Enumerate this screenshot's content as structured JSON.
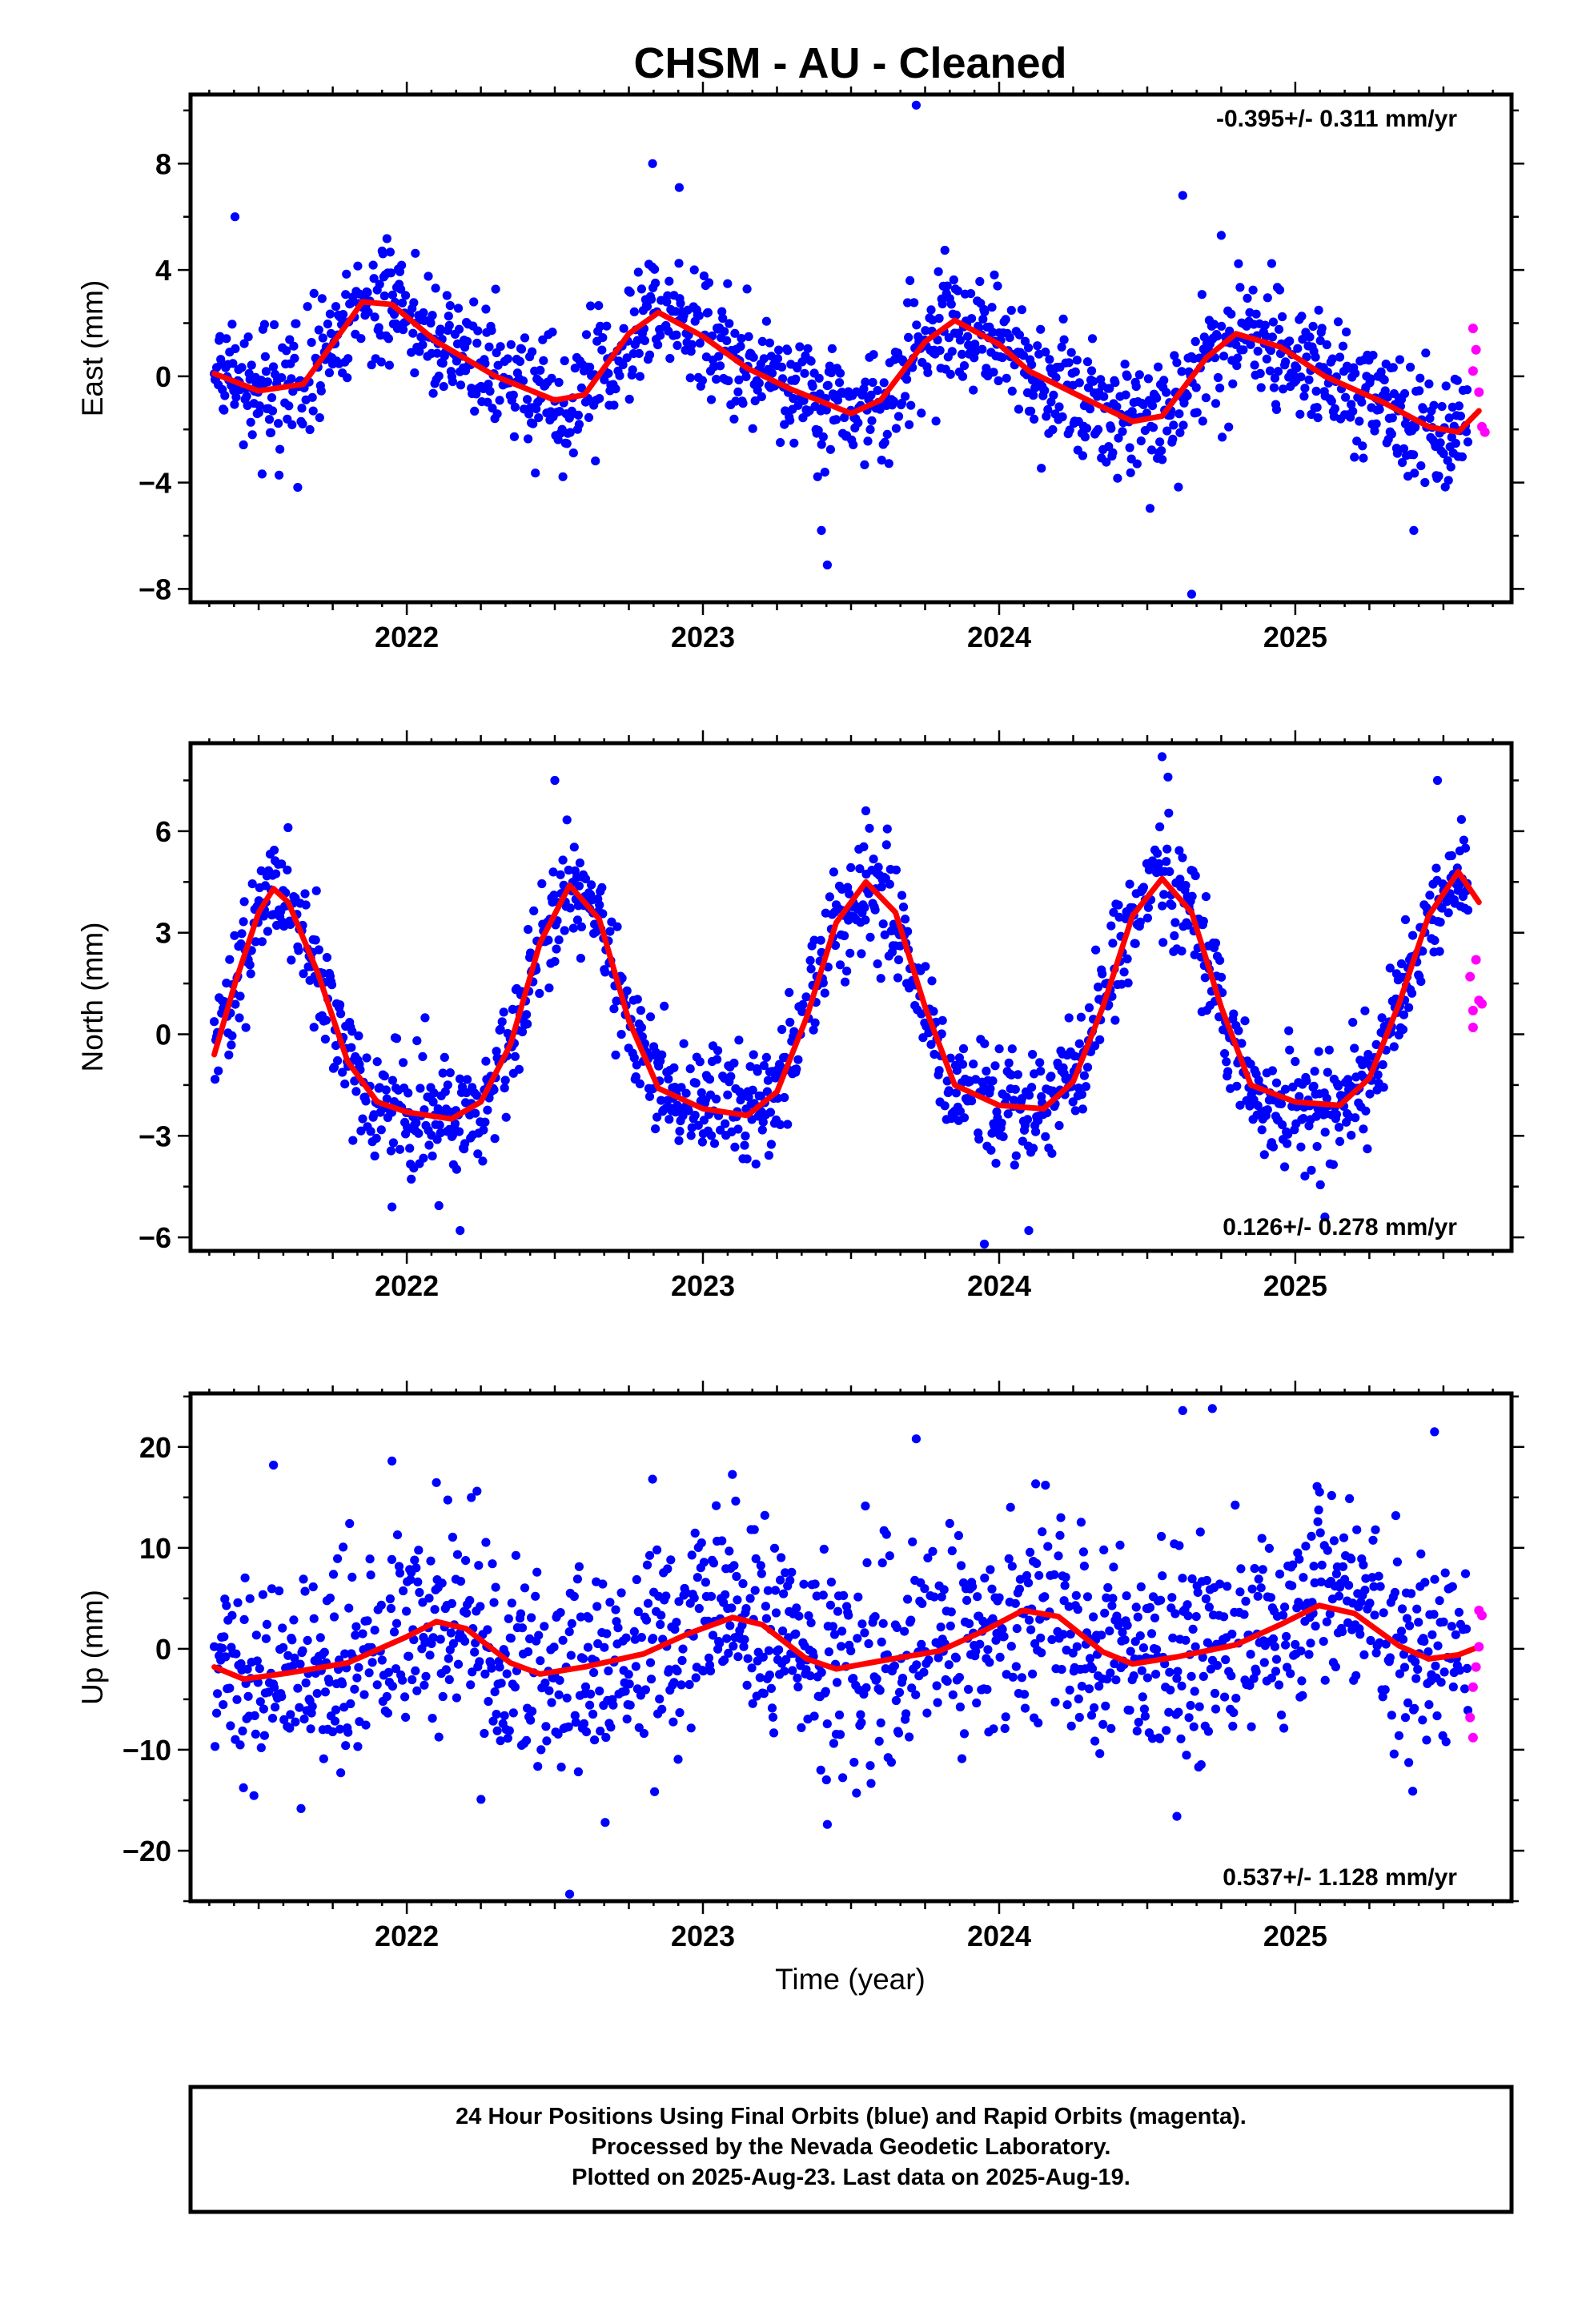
{
  "title": "CHSM  - AU - Cleaned",
  "xlabel": "Time (year)",
  "footer": {
    "line1": "24 Hour Positions Using Final Orbits (blue) and Rapid Orbits (magenta).",
    "line2": "Processed by the Nevada Geodetic Laboratory.",
    "line3": "Plotted on 2025-Aug-23. Last data on 2025-Aug-19."
  },
  "colors": {
    "final": "#0000ff",
    "rapid": "#ff00ff",
    "model": "#ff0000"
  },
  "chart_data": [
    {
      "type": "scatter",
      "ylabel": "East (mm)",
      "rate": "-0.395+/- 0.311 mm/yr",
      "rate_position": "top-right",
      "xlim": [
        2021.27,
        2025.73
      ],
      "ylim": [
        -8.5,
        10.6
      ],
      "yticks": [
        -8,
        -4,
        0,
        4,
        8
      ],
      "xticks": [
        2022,
        2023,
        2024,
        2025
      ],
      "model_curve": [
        [
          2021.35,
          0.1
        ],
        [
          2021.5,
          -0.55
        ],
        [
          2021.65,
          -0.3
        ],
        [
          2021.8,
          2.0
        ],
        [
          2021.85,
          2.8
        ],
        [
          2021.95,
          2.7
        ],
        [
          2022.1,
          1.3
        ],
        [
          2022.3,
          0.0
        ],
        [
          2022.5,
          -0.9
        ],
        [
          2022.6,
          -0.7
        ],
        [
          2022.75,
          1.6
        ],
        [
          2022.85,
          2.4
        ],
        [
          2023.0,
          1.5
        ],
        [
          2023.15,
          0.3
        ],
        [
          2023.3,
          -0.5
        ],
        [
          2023.5,
          -1.4
        ],
        [
          2023.6,
          -0.9
        ],
        [
          2023.75,
          1.3
        ],
        [
          2023.85,
          2.1
        ],
        [
          2024.0,
          1.2
        ],
        [
          2024.1,
          0.2
        ],
        [
          2024.3,
          -0.9
        ],
        [
          2024.45,
          -1.7
        ],
        [
          2024.55,
          -1.5
        ],
        [
          2024.7,
          0.7
        ],
        [
          2024.8,
          1.6
        ],
        [
          2024.95,
          1.1
        ],
        [
          2025.1,
          0.0
        ],
        [
          2025.3,
          -1.0
        ],
        [
          2025.45,
          -1.9
        ],
        [
          2025.55,
          -2.1
        ],
        [
          2025.62,
          -1.3
        ]
      ],
      "trend": {
        "intercept": 0.4,
        "slope": -0.395,
        "t0": 2021.35
      },
      "seasonal": {
        "amp": 2.0,
        "peak": 0.85,
        "amp2": 0.5
      },
      "scatter_sigma": 1.1,
      "outliers": [
        [
          2021.42,
          6.0
        ],
        [
          2022.83,
          8.0
        ],
        [
          2022.92,
          7.1
        ],
        [
          2023.72,
          10.2
        ],
        [
          2024.62,
          6.8
        ],
        [
          2024.65,
          -8.2
        ],
        [
          2023.42,
          -7.1
        ],
        [
          2023.4,
          -5.8
        ],
        [
          2025.4,
          -5.8
        ],
        [
          2024.75,
          5.3
        ]
      ],
      "rapid": [
        [
          2025.6,
          1.8
        ],
        [
          2025.61,
          1.0
        ],
        [
          2025.6,
          0.2
        ],
        [
          2025.62,
          -0.6
        ],
        [
          2025.63,
          -1.9
        ],
        [
          2025.64,
          -2.1
        ]
      ]
    },
    {
      "type": "scatter",
      "ylabel": "North (mm)",
      "rate": "0.126+/- 0.278 mm/yr",
      "rate_position": "bottom-right",
      "xlim": [
        2021.27,
        2025.73
      ],
      "ylim": [
        -6.4,
        8.6
      ],
      "yticks": [
        -6,
        -3,
        0,
        3,
        6
      ],
      "xticks": [
        2022,
        2023,
        2024,
        2025
      ],
      "model_curve": [
        [
          2021.35,
          -0.6
        ],
        [
          2021.42,
          1.5
        ],
        [
          2021.5,
          3.6
        ],
        [
          2021.55,
          4.3
        ],
        [
          2021.6,
          3.9
        ],
        [
          2021.7,
          1.8
        ],
        [
          2021.8,
          -0.8
        ],
        [
          2021.9,
          -2.0
        ],
        [
          2022.0,
          -2.3
        ],
        [
          2022.15,
          -2.5
        ],
        [
          2022.25,
          -2.0
        ],
        [
          2022.35,
          -0.3
        ],
        [
          2022.45,
          2.7
        ],
        [
          2022.55,
          4.4
        ],
        [
          2022.65,
          3.4
        ],
        [
          2022.75,
          0.4
        ],
        [
          2022.85,
          -1.6
        ],
        [
          2023.0,
          -2.2
        ],
        [
          2023.15,
          -2.4
        ],
        [
          2023.25,
          -1.7
        ],
        [
          2023.35,
          0.5
        ],
        [
          2023.45,
          3.3
        ],
        [
          2023.55,
          4.5
        ],
        [
          2023.65,
          3.6
        ],
        [
          2023.75,
          0.8
        ],
        [
          2023.85,
          -1.5
        ],
        [
          2024.0,
          -2.1
        ],
        [
          2024.15,
          -2.2
        ],
        [
          2024.25,
          -1.4
        ],
        [
          2024.35,
          0.8
        ],
        [
          2024.45,
          3.5
        ],
        [
          2024.55,
          4.6
        ],
        [
          2024.65,
          3.6
        ],
        [
          2024.75,
          0.8
        ],
        [
          2024.85,
          -1.5
        ],
        [
          2025.0,
          -2.0
        ],
        [
          2025.15,
          -2.1
        ],
        [
          2025.25,
          -1.3
        ],
        [
          2025.35,
          0.9
        ],
        [
          2025.45,
          3.5
        ],
        [
          2025.55,
          4.8
        ],
        [
          2025.62,
          3.9
        ]
      ],
      "trend": {
        "intercept": 0.0,
        "slope": 0.126,
        "t0": 2021.35
      },
      "seasonal": {
        "amp": 3.3,
        "peak": 0.55,
        "amp2": 0.9
      },
      "scatter_sigma": 0.85,
      "outliers": [
        [
          2024.55,
          8.2
        ],
        [
          2022.5,
          7.5
        ],
        [
          2024.57,
          7.6
        ],
        [
          2025.48,
          7.5
        ],
        [
          2025.1,
          -5.4
        ],
        [
          2023.55,
          6.6
        ],
        [
          2024.1,
          -5.8
        ],
        [
          2021.95,
          -5.1
        ],
        [
          2022.18,
          -5.8
        ],
        [
          2023.95,
          -6.2
        ]
      ],
      "rapid": [
        [
          2025.59,
          1.7
        ],
        [
          2025.6,
          0.7
        ],
        [
          2025.6,
          0.2
        ],
        [
          2025.61,
          2.2
        ],
        [
          2025.62,
          1.0
        ],
        [
          2025.63,
          0.9
        ]
      ]
    },
    {
      "type": "scatter",
      "ylabel": "Up (mm)",
      "rate": "0.537+/- 1.128 mm/yr",
      "rate_position": "bottom-right",
      "xlim": [
        2021.27,
        2025.73
      ],
      "ylim": [
        -25.0,
        25.3
      ],
      "yticks": [
        -20,
        -10,
        0,
        10,
        20
      ],
      "xticks": [
        2022,
        2023,
        2024,
        2025
      ],
      "model_curve": [
        [
          2021.35,
          -1.8
        ],
        [
          2021.45,
          -3.0
        ],
        [
          2021.6,
          -2.4
        ],
        [
          2021.8,
          -1.4
        ],
        [
          2022.0,
          1.2
        ],
        [
          2022.1,
          2.7
        ],
        [
          2022.2,
          2.0
        ],
        [
          2022.35,
          -1.4
        ],
        [
          2022.45,
          -2.5
        ],
        [
          2022.6,
          -1.8
        ],
        [
          2022.8,
          -0.5
        ],
        [
          2022.95,
          1.5
        ],
        [
          2023.1,
          3.1
        ],
        [
          2023.2,
          2.4
        ],
        [
          2023.35,
          -1.0
        ],
        [
          2023.45,
          -2.0
        ],
        [
          2023.6,
          -1.2
        ],
        [
          2023.8,
          -0.2
        ],
        [
          2023.95,
          1.8
        ],
        [
          2024.08,
          3.8
        ],
        [
          2024.2,
          3.2
        ],
        [
          2024.35,
          -0.3
        ],
        [
          2024.45,
          -1.5
        ],
        [
          2024.6,
          -0.8
        ],
        [
          2024.8,
          0.4
        ],
        [
          2024.95,
          2.4
        ],
        [
          2025.08,
          4.3
        ],
        [
          2025.2,
          3.5
        ],
        [
          2025.35,
          0.3
        ],
        [
          2025.45,
          -1.0
        ],
        [
          2025.55,
          -0.6
        ],
        [
          2025.62,
          0.2
        ]
      ],
      "trend": {
        "intercept": -0.8,
        "slope": 0.537,
        "t0": 2021.35
      },
      "seasonal": {
        "amp": 1.5,
        "peak": 0.08,
        "amp2": 1.0
      },
      "scatter_sigma": 5.2,
      "outliers": [
        [
          2022.55,
          -24.3
        ],
        [
          2024.62,
          23.6
        ],
        [
          2024.72,
          23.8
        ],
        [
          2025.47,
          21.5
        ],
        [
          2023.72,
          20.8
        ],
        [
          2021.95,
          18.6
        ],
        [
          2021.55,
          18.2
        ],
        [
          2022.83,
          16.8
        ],
        [
          2022.67,
          -17.2
        ],
        [
          2023.42,
          -17.4
        ],
        [
          2024.6,
          -16.6
        ]
      ],
      "rapid": [
        [
          2025.62,
          3.8
        ],
        [
          2025.63,
          3.3
        ],
        [
          2025.62,
          0.2
        ],
        [
          2025.61,
          -1.8
        ],
        [
          2025.6,
          -3.8
        ],
        [
          2025.59,
          -6.8
        ],
        [
          2025.6,
          -8.8
        ]
      ]
    }
  ]
}
